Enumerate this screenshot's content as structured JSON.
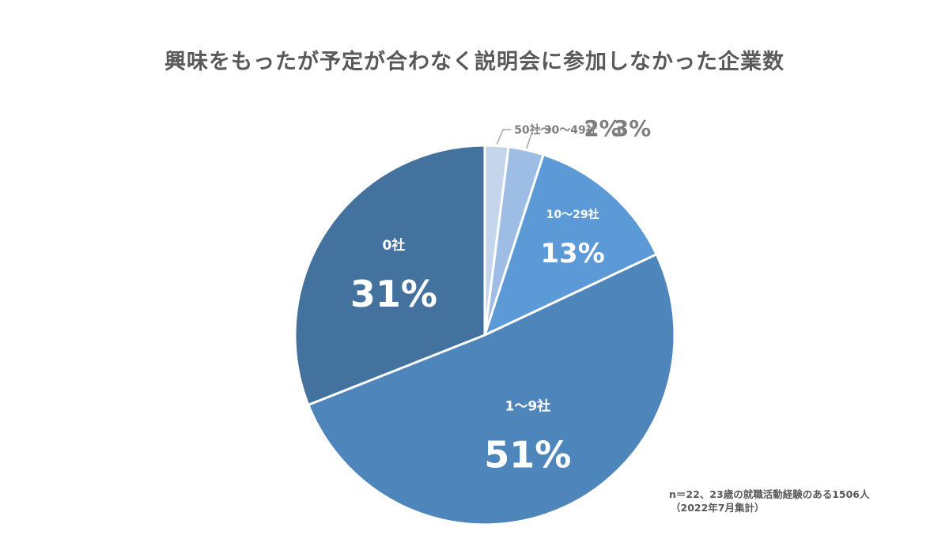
{
  "chart_data": {
    "type": "pie",
    "title": "興味をもったが予定が合わなく説明会に参加しなかった企業数",
    "start_angle": "12 o'clock",
    "direction": "clockwise",
    "slices": [
      {
        "label": "50社～",
        "value": 2,
        "value_label": "2%",
        "color": "#c5d6ec"
      },
      {
        "label": "30～49社",
        "value": 3,
        "value_label": "3%",
        "color": "#9dbde4"
      },
      {
        "label": "10～29社",
        "value": 13,
        "value_label": "13%",
        "color": "#5b9ad6"
      },
      {
        "label": "1～9社",
        "value": 51,
        "value_label": "51%",
        "color": "#4e85bb"
      },
      {
        "label": "0社",
        "value": 31,
        "value_label": "31%",
        "color": "#44729f"
      }
    ]
  },
  "note": {
    "line1": "n＝22、23歳の就職活動経験のある1506人",
    "line2": "（2022年7月集計）"
  }
}
